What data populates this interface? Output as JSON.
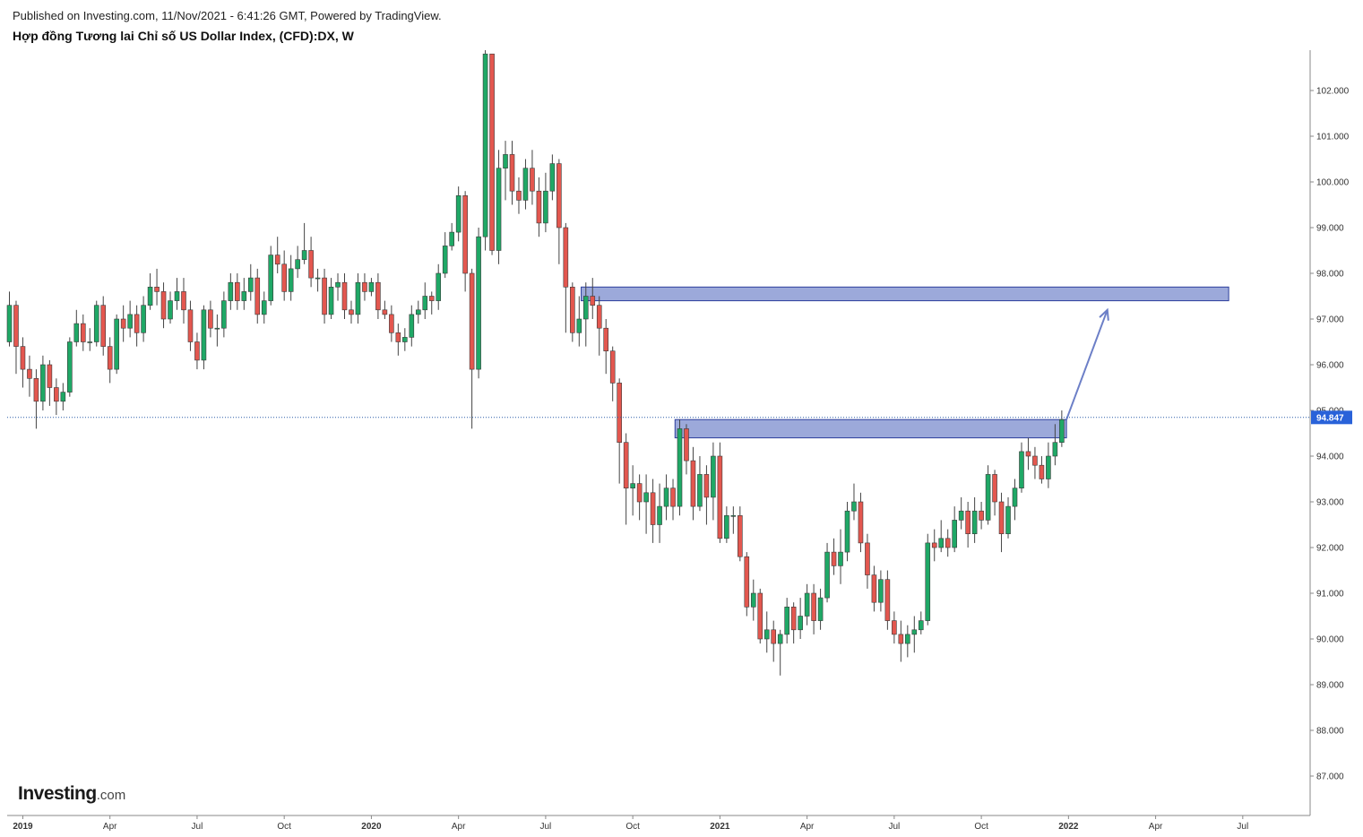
{
  "header": {
    "published": "Published on Investing.com, 11/Nov/2021 - 6:41:26 GMT, Powered by TradingView.",
    "title": "Hợp đồng Tương lai Chỉ số US Dollar Index, (CFD):DX, W"
  },
  "logo": {
    "text": "Investing",
    "suffix": ".com"
  },
  "colors": {
    "up": "#1fa866",
    "down": "#e3574f",
    "wick": "#444444",
    "zone_fill": "#8b9ad3",
    "zone_stroke": "#2c3e9c",
    "arrow": "#6c7fc7",
    "price_line": "#2c5fa8",
    "last_price_bg": "#2962d9",
    "axis_line": "#888888"
  },
  "chart_data": {
    "type": "candlestick",
    "interval": "W",
    "ylim": [
      86,
      102.8
    ],
    "y_ticks": [
      "102.000",
      "101.000",
      "100.000",
      "99.000",
      "98.000",
      "97.000",
      "96.000",
      "95.000",
      "94.000",
      "93.000",
      "92.000",
      "91.000",
      "90.000",
      "89.000",
      "88.000",
      "87.000"
    ],
    "x_ticks": [
      {
        "label": "2019",
        "bold": true,
        "week": 2
      },
      {
        "label": "Apr",
        "bold": false,
        "week": 15
      },
      {
        "label": "Jul",
        "bold": false,
        "week": 28
      },
      {
        "label": "Oct",
        "bold": false,
        "week": 41
      },
      {
        "label": "2020",
        "bold": true,
        "week": 54
      },
      {
        "label": "Apr",
        "bold": false,
        "week": 67
      },
      {
        "label": "Jul",
        "bold": false,
        "week": 80
      },
      {
        "label": "Oct",
        "bold": false,
        "week": 93
      },
      {
        "label": "2021",
        "bold": true,
        "week": 106
      },
      {
        "label": "Apr",
        "bold": false,
        "week": 119
      },
      {
        "label": "Jul",
        "bold": false,
        "week": 132
      },
      {
        "label": "Oct",
        "bold": false,
        "week": 145
      },
      {
        "label": "2022",
        "bold": true,
        "week": 158
      },
      {
        "label": "Apr",
        "bold": false,
        "week": 171
      },
      {
        "label": "Jul",
        "bold": false,
        "week": 184
      }
    ],
    "last_price": "94.847",
    "last_price_value": 94.847,
    "candles": [
      [
        96.5,
        97.3,
        97.6,
        96.4
      ],
      [
        97.3,
        96.4,
        97.4,
        95.8
      ],
      [
        96.4,
        95.9,
        96.6,
        95.5
      ],
      [
        95.9,
        95.7,
        96.2,
        95.3
      ],
      [
        95.7,
        95.2,
        95.9,
        94.6
      ],
      [
        95.2,
        96.0,
        96.2,
        95.0
      ],
      [
        96.0,
        95.5,
        96.1,
        95.1
      ],
      [
        95.5,
        95.2,
        95.7,
        94.9
      ],
      [
        95.2,
        95.4,
        95.6,
        95.0
      ],
      [
        95.4,
        96.5,
        96.6,
        95.3
      ],
      [
        96.5,
        96.9,
        97.2,
        96.4
      ],
      [
        96.9,
        96.5,
        97.1,
        96.3
      ],
      [
        96.5,
        96.5,
        96.8,
        96.3
      ],
      [
        96.5,
        97.3,
        97.4,
        96.4
      ],
      [
        97.3,
        96.4,
        97.5,
        96.2
      ],
      [
        96.4,
        95.9,
        96.6,
        95.6
      ],
      [
        95.9,
        97.0,
        97.1,
        95.8
      ],
      [
        97.0,
        96.8,
        97.3,
        96.5
      ],
      [
        96.8,
        97.1,
        97.4,
        96.6
      ],
      [
        97.1,
        96.7,
        97.3,
        96.4
      ],
      [
        96.7,
        97.3,
        97.5,
        96.5
      ],
      [
        97.3,
        97.7,
        98.0,
        97.2
      ],
      [
        97.7,
        97.6,
        98.1,
        97.3
      ],
      [
        97.6,
        97.0,
        97.8,
        96.8
      ],
      [
        97.0,
        97.4,
        97.6,
        96.9
      ],
      [
        97.4,
        97.6,
        97.9,
        97.2
      ],
      [
        97.6,
        97.2,
        97.9,
        96.9
      ],
      [
        97.2,
        96.5,
        97.4,
        96.3
      ],
      [
        96.5,
        96.1,
        96.7,
        95.9
      ],
      [
        96.1,
        97.2,
        97.3,
        95.9
      ],
      [
        97.2,
        96.8,
        97.4,
        96.6
      ],
      [
        96.8,
        96.8,
        97.1,
        96.4
      ],
      [
        96.8,
        97.4,
        97.6,
        96.6
      ],
      [
        97.4,
        97.8,
        98.0,
        97.2
      ],
      [
        97.8,
        97.4,
        98.0,
        97.2
      ],
      [
        97.4,
        97.6,
        97.9,
        97.2
      ],
      [
        97.6,
        97.9,
        98.2,
        97.4
      ],
      [
        97.9,
        97.1,
        98.1,
        96.9
      ],
      [
        97.1,
        97.4,
        97.6,
        96.9
      ],
      [
        97.4,
        98.4,
        98.6,
        97.3
      ],
      [
        98.4,
        98.2,
        98.8,
        98.0
      ],
      [
        98.2,
        97.6,
        98.5,
        97.4
      ],
      [
        97.6,
        98.1,
        98.4,
        97.4
      ],
      [
        98.1,
        98.3,
        98.6,
        97.9
      ],
      [
        98.3,
        98.5,
        99.1,
        98.2
      ],
      [
        98.5,
        97.9,
        98.8,
        97.7
      ],
      [
        97.9,
        97.9,
        98.1,
        97.6
      ],
      [
        97.9,
        97.1,
        98.1,
        96.9
      ],
      [
        97.1,
        97.7,
        97.9,
        97.0
      ],
      [
        97.7,
        97.8,
        98.0,
        97.4
      ],
      [
        97.8,
        97.2,
        98.0,
        97.0
      ],
      [
        97.2,
        97.1,
        97.4,
        96.9
      ],
      [
        97.1,
        97.8,
        98.0,
        96.9
      ],
      [
        97.8,
        97.6,
        98.0,
        97.4
      ],
      [
        97.6,
        97.8,
        97.9,
        97.5
      ],
      [
        97.8,
        97.2,
        98.0,
        97.0
      ],
      [
        97.2,
        97.1,
        97.4,
        97.0
      ],
      [
        97.1,
        96.7,
        97.3,
        96.5
      ],
      [
        96.7,
        96.5,
        96.9,
        96.2
      ],
      [
        96.5,
        96.6,
        96.8,
        96.3
      ],
      [
        96.6,
        97.1,
        97.3,
        96.4
      ],
      [
        97.1,
        97.2,
        97.4,
        96.9
      ],
      [
        97.2,
        97.5,
        97.8,
        97.0
      ],
      [
        97.5,
        97.4,
        97.6,
        97.1
      ],
      [
        97.4,
        98.0,
        98.2,
        97.2
      ],
      [
        98.0,
        98.6,
        98.9,
        97.9
      ],
      [
        98.6,
        98.9,
        99.1,
        98.5
      ],
      [
        98.9,
        99.7,
        99.9,
        98.7
      ],
      [
        99.7,
        98.0,
        99.8,
        97.6
      ],
      [
        98.0,
        95.9,
        98.1,
        94.6
      ],
      [
        95.9,
        98.8,
        99.0,
        95.7
      ],
      [
        98.8,
        102.8,
        103.0,
        98.5
      ],
      [
        102.8,
        98.5,
        102.8,
        98.4
      ],
      [
        98.5,
        100.3,
        100.7,
        98.2
      ],
      [
        100.3,
        100.6,
        100.9,
        99.6
      ],
      [
        100.6,
        99.8,
        100.9,
        99.5
      ],
      [
        99.8,
        99.6,
        100.1,
        99.3
      ],
      [
        99.6,
        100.3,
        100.5,
        99.4
      ],
      [
        100.3,
        99.8,
        100.7,
        99.5
      ],
      [
        99.8,
        99.1,
        100.1,
        98.8
      ],
      [
        99.1,
        99.8,
        100.2,
        98.9
      ],
      [
        99.8,
        100.4,
        100.6,
        99.6
      ],
      [
        100.4,
        99.0,
        100.5,
        98.2
      ],
      [
        99.0,
        97.7,
        99.1,
        96.7
      ],
      [
        97.7,
        96.7,
        97.8,
        96.5
      ],
      [
        96.7,
        97.0,
        97.5,
        96.4
      ],
      [
        97.0,
        97.5,
        97.8,
        96.4
      ],
      [
        97.5,
        97.3,
        97.9,
        97.0
      ],
      [
        97.3,
        96.8,
        97.5,
        96.2
      ],
      [
        96.8,
        96.3,
        97.0,
        95.8
      ],
      [
        96.3,
        95.6,
        96.4,
        95.2
      ],
      [
        95.6,
        94.3,
        95.7,
        93.4
      ],
      [
        94.3,
        93.3,
        94.5,
        92.5
      ],
      [
        93.3,
        93.4,
        93.8,
        92.7
      ],
      [
        93.4,
        93.0,
        93.6,
        92.6
      ],
      [
        93.0,
        93.2,
        93.6,
        92.3
      ],
      [
        93.2,
        92.5,
        93.5,
        92.1
      ],
      [
        92.5,
        92.9,
        93.4,
        92.1
      ],
      [
        92.9,
        93.3,
        93.6,
        92.6
      ],
      [
        93.3,
        92.9,
        93.5,
        92.6
      ],
      [
        92.9,
        94.6,
        94.8,
        92.7
      ],
      [
        94.6,
        93.9,
        94.7,
        93.6
      ],
      [
        93.9,
        92.9,
        94.2,
        92.6
      ],
      [
        92.9,
        93.6,
        94.0,
        92.8
      ],
      [
        93.6,
        93.1,
        93.8,
        92.5
      ],
      [
        93.1,
        94.0,
        94.3,
        92.6
      ],
      [
        94.0,
        92.2,
        94.3,
        92.1
      ],
      [
        92.2,
        92.7,
        92.9,
        92.1
      ],
      [
        92.7,
        92.7,
        92.9,
        92.3
      ],
      [
        92.7,
        91.8,
        92.9,
        91.7
      ],
      [
        91.8,
        90.7,
        91.9,
        90.5
      ],
      [
        90.7,
        91.0,
        91.3,
        90.4
      ],
      [
        91.0,
        90.0,
        91.1,
        89.9
      ],
      [
        90.0,
        90.2,
        90.6,
        89.7
      ],
      [
        90.2,
        89.9,
        90.4,
        89.5
      ],
      [
        89.9,
        90.1,
        90.2,
        89.2
      ],
      [
        90.1,
        90.7,
        90.9,
        89.9
      ],
      [
        90.7,
        90.2,
        90.8,
        89.9
      ],
      [
        90.2,
        90.5,
        90.9,
        90.0
      ],
      [
        90.5,
        91.0,
        91.2,
        90.3
      ],
      [
        91.0,
        90.4,
        91.2,
        90.1
      ],
      [
        90.4,
        90.9,
        91.1,
        90.2
      ],
      [
        90.9,
        91.9,
        92.1,
        90.8
      ],
      [
        91.9,
        91.6,
        92.2,
        91.4
      ],
      [
        91.6,
        91.9,
        92.4,
        91.2
      ],
      [
        91.9,
        92.8,
        93.0,
        91.7
      ],
      [
        92.8,
        93.0,
        93.4,
        92.6
      ],
      [
        93.0,
        92.1,
        93.2,
        91.9
      ],
      [
        92.1,
        91.4,
        92.3,
        91.1
      ],
      [
        91.4,
        90.8,
        91.6,
        90.6
      ],
      [
        90.8,
        91.3,
        91.5,
        90.6
      ],
      [
        91.3,
        90.4,
        91.5,
        90.2
      ],
      [
        90.4,
        90.1,
        90.6,
        89.9
      ],
      [
        90.1,
        89.9,
        90.4,
        89.5
      ],
      [
        89.9,
        90.1,
        90.3,
        89.6
      ],
      [
        90.1,
        90.2,
        90.5,
        89.7
      ],
      [
        90.2,
        90.4,
        90.6,
        90.1
      ],
      [
        90.4,
        92.1,
        92.3,
        90.3
      ],
      [
        92.1,
        92.0,
        92.4,
        91.7
      ],
      [
        92.0,
        92.2,
        92.6,
        91.9
      ],
      [
        92.2,
        92.0,
        92.4,
        91.8
      ],
      [
        92.0,
        92.6,
        92.9,
        91.9
      ],
      [
        92.6,
        92.8,
        93.1,
        92.4
      ],
      [
        92.8,
        92.3,
        93.0,
        92.0
      ],
      [
        92.3,
        92.8,
        93.1,
        92.1
      ],
      [
        92.8,
        92.6,
        93.0,
        92.4
      ],
      [
        92.6,
        93.6,
        93.8,
        92.5
      ],
      [
        93.6,
        93.0,
        93.7,
        92.7
      ],
      [
        93.0,
        92.3,
        93.2,
        91.9
      ],
      [
        92.3,
        92.9,
        93.1,
        92.2
      ],
      [
        92.9,
        93.3,
        93.5,
        92.6
      ],
      [
        93.3,
        94.1,
        94.3,
        93.2
      ],
      [
        94.1,
        94.0,
        94.4,
        93.7
      ],
      [
        94.0,
        93.8,
        94.2,
        93.5
      ],
      [
        93.8,
        93.5,
        94.0,
        93.4
      ],
      [
        93.5,
        94.0,
        94.3,
        93.3
      ],
      [
        94.0,
        94.3,
        94.7,
        93.8
      ],
      [
        94.3,
        94.8,
        95.0,
        94.2
      ]
    ],
    "zones": [
      {
        "from_week": 99.3,
        "to_week": 157.7,
        "low": 94.4,
        "high": 94.8
      },
      {
        "from_week": 85.3,
        "to_week": 181.9,
        "low": 97.4,
        "high": 97.7
      }
    ],
    "arrow": {
      "from_week": 157.7,
      "from_value": 94.8,
      "to_week": 163.8,
      "to_value": 97.2
    }
  }
}
